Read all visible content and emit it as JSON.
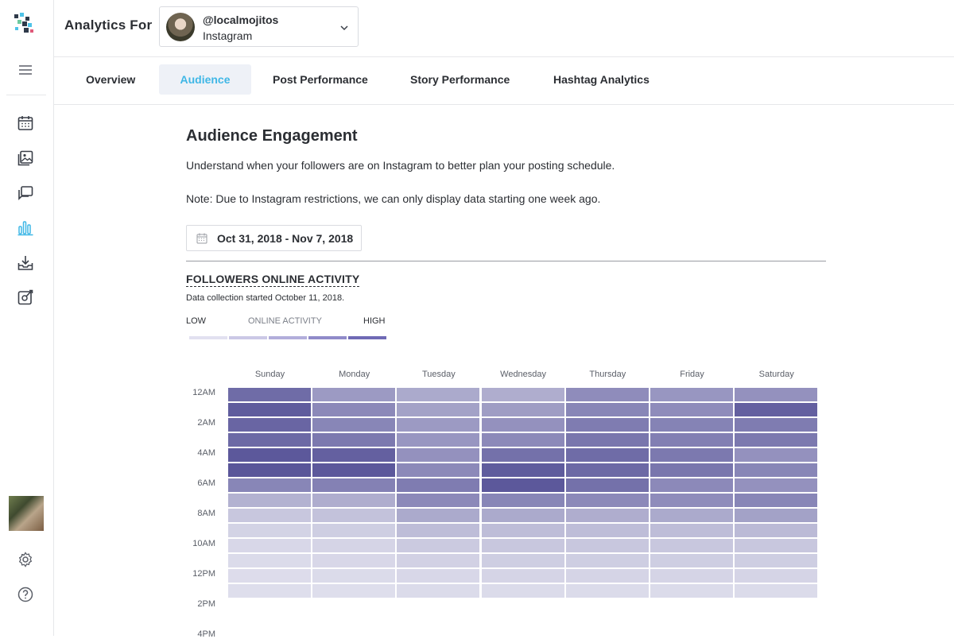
{
  "header": {
    "title": "Analytics For",
    "account": {
      "handle": "@localmojitos",
      "network": "Instagram"
    }
  },
  "sidebar": {
    "icons": [
      "menu-icon",
      "calendar-icon",
      "media-library-icon",
      "conversations-icon",
      "analytics-icon",
      "inbox-download-icon",
      "edit-link-icon",
      "settings-icon",
      "help-icon"
    ]
  },
  "tabs": [
    {
      "label": "Overview",
      "active": false
    },
    {
      "label": "Audience",
      "active": true
    },
    {
      "label": "Post Performance",
      "active": false
    },
    {
      "label": "Story Performance",
      "active": false
    },
    {
      "label": "Hashtag Analytics",
      "active": false
    }
  ],
  "main": {
    "title": "Audience Engagement",
    "description": "Understand when your followers are on Instagram to better plan your posting schedule.",
    "note": "Note: Due to Instagram restrictions, we can only display data starting one week ago.",
    "date_range": "Oct 31, 2018 - Nov 7, 2018",
    "section_title": "FOLLOWERS ONLINE ACTIVITY",
    "section_subtitle": "Data collection started October 11, 2018.",
    "legend": {
      "low": "LOW",
      "label": "ONLINE ACTIVITY",
      "high": "HIGH",
      "colors": [
        "#e2e1f0",
        "#cbc8e6",
        "#b2aedb",
        "#908bc9",
        "#6f6ab5"
      ]
    }
  },
  "colors": {
    "accent": "#3fb7e6",
    "heat_low": "#ebebf4",
    "heat_high": "#4c4891"
  },
  "chart_data": {
    "type": "heatmap",
    "columns": [
      "Sunday",
      "Monday",
      "Tuesday",
      "Wednesday",
      "Thursday",
      "Friday",
      "Saturday"
    ],
    "row_labels": [
      "12AM",
      "2AM",
      "4AM",
      "6AM",
      "8AM",
      "10AM",
      "12PM",
      "2PM",
      "4PM"
    ],
    "rows_per_label": 2,
    "values": [
      [
        0.78,
        0.5,
        0.4,
        0.38,
        0.58,
        0.52,
        0.55
      ],
      [
        0.88,
        0.6,
        0.45,
        0.48,
        0.62,
        0.58,
        0.85
      ],
      [
        0.82,
        0.62,
        0.5,
        0.55,
        0.68,
        0.64,
        0.68
      ],
      [
        0.8,
        0.7,
        0.52,
        0.6,
        0.72,
        0.66,
        0.7
      ],
      [
        0.9,
        0.85,
        0.55,
        0.75,
        0.78,
        0.7,
        0.55
      ],
      [
        0.92,
        0.9,
        0.6,
        0.88,
        0.8,
        0.72,
        0.62
      ],
      [
        0.62,
        0.65,
        0.68,
        0.9,
        0.75,
        0.6,
        0.55
      ],
      [
        0.35,
        0.38,
        0.6,
        0.62,
        0.6,
        0.58,
        0.62
      ],
      [
        0.22,
        0.25,
        0.4,
        0.4,
        0.38,
        0.4,
        0.45
      ],
      [
        0.15,
        0.18,
        0.28,
        0.28,
        0.28,
        0.28,
        0.3
      ],
      [
        0.12,
        0.14,
        0.2,
        0.22,
        0.22,
        0.22,
        0.22
      ],
      [
        0.1,
        0.12,
        0.16,
        0.18,
        0.18,
        0.18,
        0.18
      ],
      [
        0.09,
        0.1,
        0.12,
        0.14,
        0.14,
        0.14,
        0.14
      ],
      [
        0.08,
        0.08,
        0.1,
        0.1,
        0.1,
        0.1,
        0.1
      ]
    ]
  }
}
